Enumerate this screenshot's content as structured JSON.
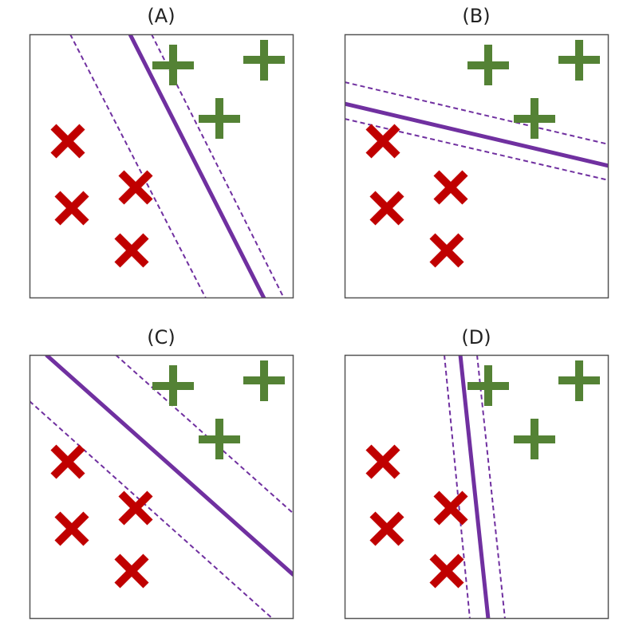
{
  "colors": {
    "boundary": "#7030a0",
    "plus": "#548235",
    "cross": "#c00000",
    "frame": "#555555"
  },
  "panels": [
    {
      "label": "(A)"
    },
    {
      "label": "(B)"
    },
    {
      "label": "(C)"
    },
    {
      "label": "(D)"
    }
  ],
  "markers": {
    "plus_count": 3,
    "cross_count": 4
  }
}
